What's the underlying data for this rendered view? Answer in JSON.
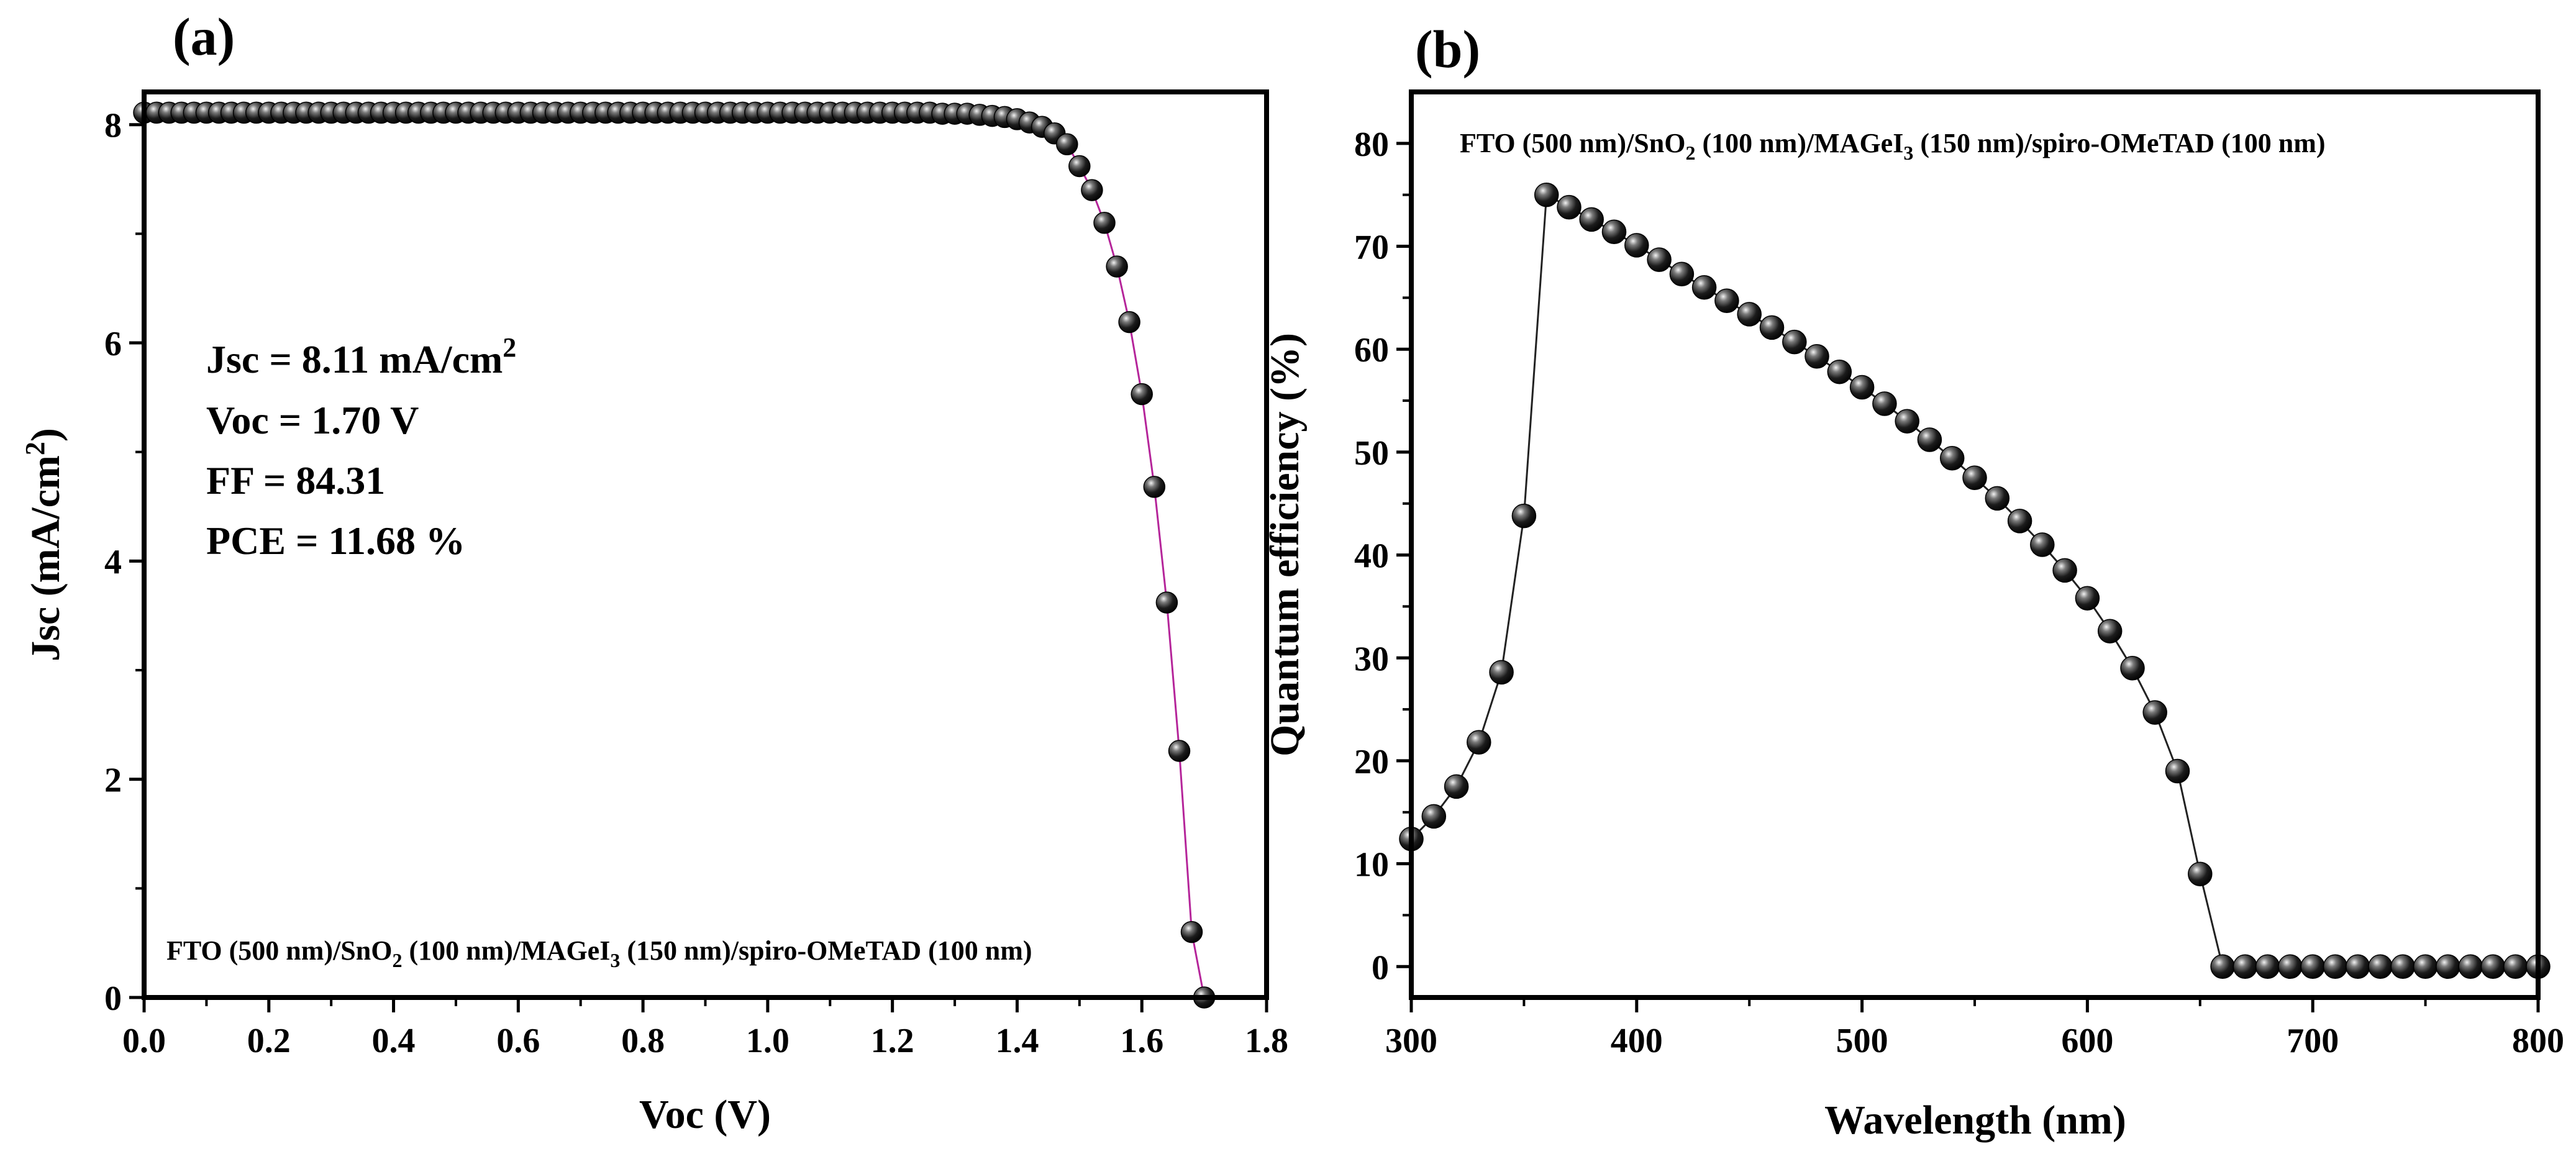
{
  "chart_data": [
    {
      "panel_label": "(a)",
      "type": "scatter",
      "title": "",
      "xlabel": "Voc (V)",
      "ylabel": "Jsc (mA/cm",
      "ylabel_sup": "2",
      "ylabel_end": ")",
      "xlim": [
        0,
        1.8
      ],
      "ylim": [
        0,
        8.3
      ],
      "xticks": [
        0.0,
        0.2,
        0.4,
        0.6,
        0.8,
        1.0,
        1.2,
        1.4,
        1.6,
        1.8
      ],
      "xtick_labels": [
        "0.0",
        "0.2",
        "0.4",
        "0.6",
        "0.8",
        "1.0",
        "1.2",
        "1.4",
        "1.6",
        "1.8"
      ],
      "yticks": [
        0,
        2,
        4,
        6,
        8
      ],
      "ytick_labels": [
        "0",
        "2",
        "4",
        "6",
        "8"
      ],
      "line_color": "#b5259a",
      "marker_color": "#111111",
      "annotations": {
        "jsc_text": "Jsc = 8.11 mA/cm",
        "jsc_sup": "2",
        "voc_text": "Voc = 1.70 V",
        "ff_text": "FF = 84.31",
        "pce_text": "PCE = 11.68 %"
      },
      "device_label": {
        "p1": "FTO (500 nm)/SnO",
        "s1": "2",
        "p2": " (100 nm)/MAGeI",
        "s2": "3",
        "p3": " (150 nm)/spiro-OMeTAD (100 nm)"
      },
      "series": [
        {
          "name": "J-V",
          "x": [
            0.0,
            0.02,
            0.04,
            0.06,
            0.08,
            0.1,
            0.12,
            0.14,
            0.16,
            0.18,
            0.2,
            0.22,
            0.24,
            0.26,
            0.28,
            0.3,
            0.32,
            0.34,
            0.36,
            0.38,
            0.4,
            0.42,
            0.44,
            0.46,
            0.48,
            0.5,
            0.52,
            0.54,
            0.56,
            0.58,
            0.6,
            0.62,
            0.64,
            0.66,
            0.68,
            0.7,
            0.72,
            0.74,
            0.76,
            0.78,
            0.8,
            0.82,
            0.84,
            0.86,
            0.88,
            0.9,
            0.92,
            0.94,
            0.96,
            0.98,
            1.0,
            1.02,
            1.04,
            1.06,
            1.08,
            1.1,
            1.12,
            1.14,
            1.16,
            1.18,
            1.2,
            1.22,
            1.24,
            1.26,
            1.28,
            1.3,
            1.32,
            1.34,
            1.36,
            1.38,
            1.4,
            1.42,
            1.44,
            1.46,
            1.48,
            1.5,
            1.52,
            1.54,
            1.56,
            1.58,
            1.6,
            1.62,
            1.64,
            1.66,
            1.68,
            1.7
          ],
          "y": [
            8.11,
            8.11,
            8.11,
            8.11,
            8.11,
            8.11,
            8.11,
            8.11,
            8.11,
            8.11,
            8.11,
            8.11,
            8.11,
            8.11,
            8.11,
            8.11,
            8.11,
            8.11,
            8.11,
            8.11,
            8.11,
            8.11,
            8.11,
            8.11,
            8.11,
            8.11,
            8.11,
            8.11,
            8.11,
            8.11,
            8.11,
            8.11,
            8.11,
            8.11,
            8.11,
            8.11,
            8.11,
            8.11,
            8.11,
            8.11,
            8.11,
            8.11,
            8.11,
            8.11,
            8.11,
            8.11,
            8.11,
            8.11,
            8.11,
            8.11,
            8.11,
            8.11,
            8.11,
            8.11,
            8.11,
            8.11,
            8.11,
            8.11,
            8.11,
            8.11,
            8.11,
            8.11,
            8.11,
            8.11,
            8.1,
            8.1,
            8.1,
            8.09,
            8.08,
            8.07,
            8.05,
            8.02,
            7.98,
            7.92,
            7.82,
            7.62,
            7.4,
            7.1,
            6.7,
            6.19,
            5.53,
            4.68,
            3.62,
            2.26,
            0.6,
            0.0
          ]
        }
      ]
    },
    {
      "panel_label": "(b)",
      "type": "scatter",
      "title": "",
      "xlabel": "Wavelength (nm)",
      "ylabel": "Quantum efficiency (%)",
      "xlim": [
        300,
        800
      ],
      "ylim": [
        -3,
        85
      ],
      "xticks": [
        300,
        400,
        500,
        600,
        700,
        800
      ],
      "xtick_labels": [
        "300",
        "400",
        "500",
        "600",
        "700",
        "800"
      ],
      "yticks": [
        0,
        10,
        20,
        30,
        40,
        50,
        60,
        70,
        80
      ],
      "ytick_labels": [
        "0",
        "10",
        "20",
        "30",
        "40",
        "50",
        "60",
        "70",
        "80"
      ],
      "line_color": "#222222",
      "marker_color": "#111111",
      "device_label": {
        "p1": "FTO (500 nm)/SnO",
        "s1": "2",
        "p2": " (100 nm)/MAGeI",
        "s2": "3",
        "p3": " (150 nm)/spiro-OMeTAD (100 nm)"
      },
      "series": [
        {
          "name": "QE",
          "x": [
            300,
            310,
            320,
            330,
            340,
            350,
            360,
            370,
            380,
            390,
            400,
            410,
            420,
            430,
            440,
            450,
            460,
            470,
            480,
            490,
            500,
            510,
            520,
            530,
            540,
            550,
            560,
            570,
            580,
            590,
            600,
            610,
            620,
            630,
            640,
            650,
            660,
            670,
            680,
            690,
            700,
            710,
            720,
            730,
            740,
            750,
            760,
            770,
            780,
            790,
            800
          ],
          "y": [
            12.4,
            14.6,
            17.5,
            21.8,
            28.6,
            43.8,
            75.0,
            73.8,
            72.6,
            71.4,
            70.1,
            68.7,
            67.3,
            66.0,
            64.7,
            63.4,
            62.1,
            60.7,
            59.3,
            57.8,
            56.3,
            54.7,
            53.0,
            51.2,
            49.4,
            47.5,
            45.5,
            43.3,
            41.0,
            38.5,
            35.8,
            32.6,
            29.0,
            24.7,
            19.0,
            9.0,
            0,
            0,
            0,
            0,
            0,
            0,
            0,
            0,
            0,
            0,
            0,
            0,
            0,
            0,
            0
          ]
        }
      ]
    }
  ]
}
